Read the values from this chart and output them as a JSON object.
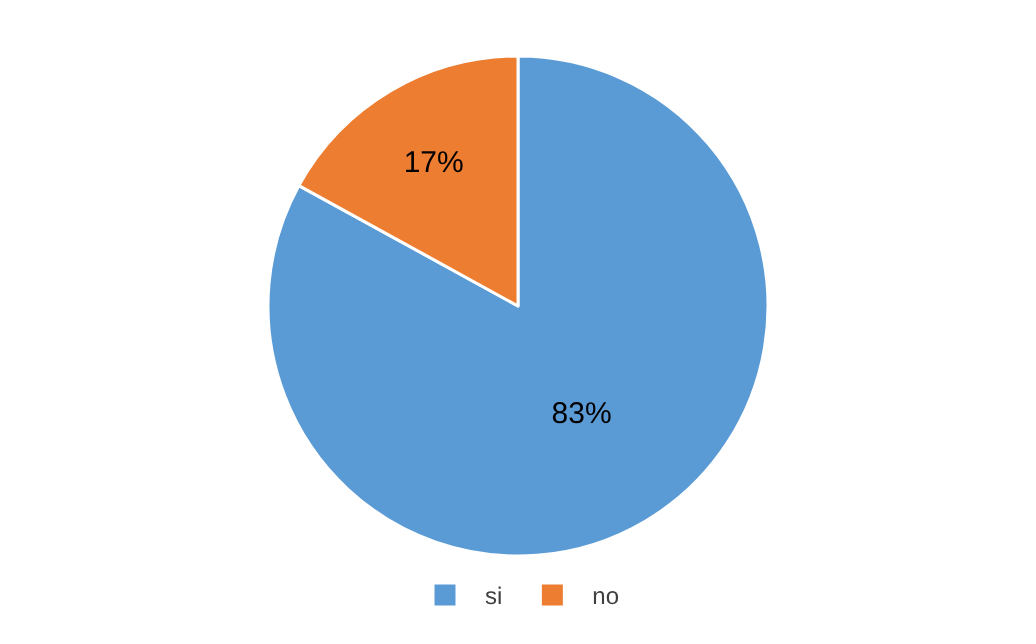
{
  "chart_data": {
    "type": "pie",
    "categories": [
      "si",
      "no"
    ],
    "values": [
      83,
      17
    ],
    "colors": [
      "#5b9bd5",
      "#ed7d31"
    ],
    "value_labels": [
      "83%",
      "17%"
    ],
    "legend": "bottom"
  }
}
